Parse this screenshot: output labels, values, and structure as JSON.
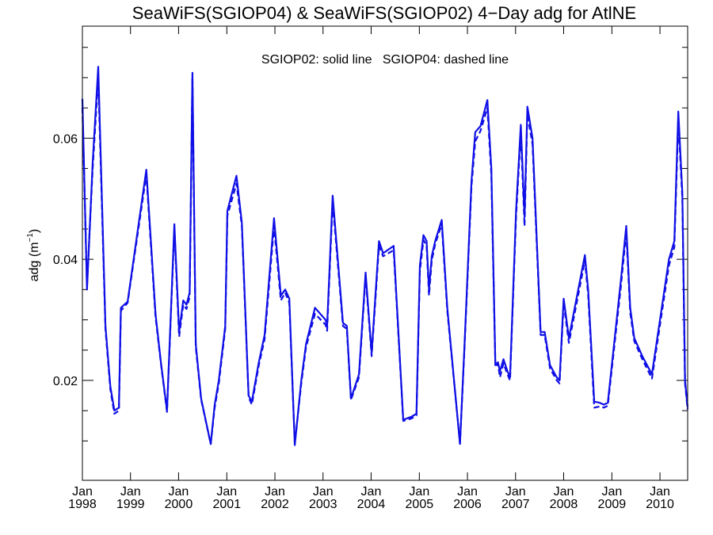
{
  "chart_data": {
    "type": "line",
    "title": "SeaWiFS(SGIOP04) & SeaWiFS(SGIOP02) 4−Day adg for AtlNE",
    "annotation": "SGIOP02: solid line   SGIOP04: dashed line",
    "ylabel_main": "adg (m",
    "ylabel_sup": "−1",
    "ylabel_close": ")",
    "ylim": [
      0.0035,
      0.0785
    ],
    "xlim": [
      "1998-01-01",
      "2010-07-30"
    ],
    "yticks": [
      0.02,
      0.04,
      0.06
    ],
    "ytick_labels": [
      "0.02",
      "0.04",
      "0.06"
    ],
    "ytick_minor": [
      0.01,
      0.015,
      0.025,
      0.03,
      0.035,
      0.045,
      0.05,
      0.055,
      0.065,
      0.07,
      0.075
    ],
    "xticks": [
      {
        "date": "1998-01-01",
        "month": "Jan",
        "year": "1998"
      },
      {
        "date": "1999-01-01",
        "month": "Jan",
        "year": "1999"
      },
      {
        "date": "2000-01-01",
        "month": "Jan",
        "year": "2000"
      },
      {
        "date": "2001-01-01",
        "month": "Jan",
        "year": "2001"
      },
      {
        "date": "2002-01-01",
        "month": "Jan",
        "year": "2002"
      },
      {
        "date": "2003-01-01",
        "month": "Jan",
        "year": "2003"
      },
      {
        "date": "2004-01-01",
        "month": "Jan",
        "year": "2004"
      },
      {
        "date": "2005-01-01",
        "month": "Jan",
        "year": "2005"
      },
      {
        "date": "2006-01-01",
        "month": "Jan",
        "year": "2006"
      },
      {
        "date": "2007-01-01",
        "month": "Jan",
        "year": "2007"
      },
      {
        "date": "2008-01-01",
        "month": "Jan",
        "year": "2008"
      },
      {
        "date": "2009-01-01",
        "month": "Jan",
        "year": "2009"
      },
      {
        "date": "2010-01-01",
        "month": "Jan",
        "year": "2010"
      }
    ],
    "color": "#1010e6",
    "grid": false,
    "series": [
      {
        "name": "SGIOP02",
        "style": "solid",
        "points": [
          [
            "1998-01-01",
            0.0665
          ],
          [
            "1998-02-05",
            0.035
          ],
          [
            "1998-03-20",
            0.056
          ],
          [
            "1998-05-01",
            0.0718
          ],
          [
            "1998-06-25",
            0.029
          ],
          [
            "1998-08-01",
            0.019
          ],
          [
            "1998-09-01",
            0.015
          ],
          [
            "1998-10-05",
            0.0155
          ],
          [
            "1998-10-20",
            0.032
          ],
          [
            "1998-12-10",
            0.033
          ],
          [
            "1999-05-01",
            0.0548
          ],
          [
            "1999-07-10",
            0.031
          ],
          [
            "1999-08-20",
            0.023
          ],
          [
            "1999-10-05",
            0.015
          ],
          [
            "1999-11-30",
            0.0458
          ],
          [
            "2000-01-05",
            0.028
          ],
          [
            "2000-02-05",
            0.0332
          ],
          [
            "2000-03-01",
            0.0325
          ],
          [
            "2000-03-25",
            0.0345
          ],
          [
            "2000-04-15",
            0.0708
          ],
          [
            "2000-05-10",
            0.026
          ],
          [
            "2000-06-20",
            0.017
          ],
          [
            "2000-09-01",
            0.0095
          ],
          [
            "2000-10-01",
            0.016
          ],
          [
            "2000-11-01",
            0.02
          ],
          [
            "2000-12-20",
            0.029
          ],
          [
            "2001-01-05",
            0.048
          ],
          [
            "2001-03-15",
            0.0538
          ],
          [
            "2001-04-25",
            0.046
          ],
          [
            "2001-06-15",
            0.0175
          ],
          [
            "2001-07-10",
            0.0165
          ],
          [
            "2001-09-01",
            0.023
          ],
          [
            "2001-10-15",
            0.0275
          ],
          [
            "2001-12-25",
            0.0468
          ],
          [
            "2002-02-15",
            0.034
          ],
          [
            "2002-03-20",
            0.035
          ],
          [
            "2002-04-20",
            0.0335
          ],
          [
            "2002-06-01",
            0.0093
          ],
          [
            "2002-07-20",
            0.02
          ],
          [
            "2002-08-25",
            0.026
          ],
          [
            "2002-11-01",
            0.032
          ],
          [
            "2003-01-20",
            0.03
          ],
          [
            "2003-02-01",
            0.029
          ],
          [
            "2003-03-15",
            0.0505
          ],
          [
            "2003-06-01",
            0.0295
          ],
          [
            "2003-07-01",
            0.029
          ],
          [
            "2003-08-01",
            0.017
          ],
          [
            "2003-10-01",
            0.021
          ],
          [
            "2003-11-20",
            0.0378
          ],
          [
            "2004-01-05",
            0.0245
          ],
          [
            "2004-03-01",
            0.043
          ],
          [
            "2004-04-01",
            0.041
          ],
          [
            "2004-06-20",
            0.0422
          ],
          [
            "2004-09-01",
            0.0135
          ],
          [
            "2004-11-01",
            0.014
          ],
          [
            "2004-12-10",
            0.0145
          ],
          [
            "2005-01-05",
            0.039
          ],
          [
            "2005-02-01",
            0.044
          ],
          [
            "2005-02-25",
            0.043
          ],
          [
            "2005-03-15",
            0.035
          ],
          [
            "2005-04-05",
            0.0405
          ],
          [
            "2005-05-01",
            0.043
          ],
          [
            "2005-06-20",
            0.0465
          ],
          [
            "2005-08-01",
            0.032
          ],
          [
            "2005-11-05",
            0.0095
          ],
          [
            "2005-12-10",
            0.026
          ],
          [
            "2006-02-01",
            0.053
          ],
          [
            "2006-03-01",
            0.061
          ],
          [
            "2006-04-10",
            0.062
          ],
          [
            "2006-06-01",
            0.0663
          ],
          [
            "2006-07-01",
            0.055
          ],
          [
            "2006-08-01",
            0.0225
          ],
          [
            "2006-08-20",
            0.023
          ],
          [
            "2006-09-05",
            0.0215
          ],
          [
            "2006-10-01",
            0.0235
          ],
          [
            "2006-11-01",
            0.0215
          ],
          [
            "2006-11-20",
            0.0205
          ],
          [
            "2007-01-05",
            0.048
          ],
          [
            "2007-02-10",
            0.0622
          ],
          [
            "2007-03-10",
            0.047
          ],
          [
            "2007-04-01",
            0.0652
          ],
          [
            "2007-05-10",
            0.06
          ],
          [
            "2007-07-10",
            0.028
          ],
          [
            "2007-08-10",
            0.028
          ],
          [
            "2007-09-20",
            0.0225
          ],
          [
            "2007-11-10",
            0.0205
          ],
          [
            "2007-12-01",
            0.02
          ],
          [
            "2008-01-01",
            0.0335
          ],
          [
            "2008-02-10",
            0.027
          ],
          [
            "2008-06-10",
            0.0407
          ],
          [
            "2008-07-05",
            0.035
          ],
          [
            "2008-08-20",
            0.0165
          ],
          [
            "2008-10-01",
            0.0163
          ],
          [
            "2008-11-01",
            0.016
          ],
          [
            "2008-12-01",
            0.0163
          ],
          [
            "2009-03-10",
            0.0365
          ],
          [
            "2009-04-20",
            0.0455
          ],
          [
            "2009-05-20",
            0.032
          ],
          [
            "2009-06-20",
            0.027
          ],
          [
            "2009-08-20",
            0.024
          ],
          [
            "2009-11-01",
            0.021
          ],
          [
            "2010-03-10",
            0.04
          ],
          [
            "2010-04-20",
            0.043
          ],
          [
            "2010-05-20",
            0.0644
          ],
          [
            "2010-06-20",
            0.051
          ],
          [
            "2010-07-10",
            0.02
          ],
          [
            "2010-07-30",
            0.0155
          ]
        ]
      },
      {
        "name": "SGIOP04",
        "style": "dashed",
        "points": [
          [
            "1998-01-01",
            0.065
          ],
          [
            "1998-02-05",
            0.0355
          ],
          [
            "1998-03-20",
            0.055
          ],
          [
            "1998-05-01",
            0.07
          ],
          [
            "1998-06-25",
            0.0285
          ],
          [
            "1998-08-01",
            0.0185
          ],
          [
            "1998-09-01",
            0.0145
          ],
          [
            "1998-10-05",
            0.015
          ],
          [
            "1998-10-20",
            0.0315
          ],
          [
            "1998-12-10",
            0.0328
          ],
          [
            "1999-05-01",
            0.054
          ],
          [
            "1999-07-10",
            0.0305
          ],
          [
            "1999-08-20",
            0.0228
          ],
          [
            "1999-10-05",
            0.0148
          ],
          [
            "1999-11-30",
            0.045
          ],
          [
            "2000-01-05",
            0.0272
          ],
          [
            "2000-02-05",
            0.0325
          ],
          [
            "2000-03-01",
            0.0318
          ],
          [
            "2000-03-25",
            0.0338
          ],
          [
            "2000-04-15",
            0.07
          ],
          [
            "2000-05-10",
            0.0255
          ],
          [
            "2000-06-20",
            0.0168
          ],
          [
            "2000-09-01",
            0.0095
          ],
          [
            "2000-10-01",
            0.0155
          ],
          [
            "2000-11-01",
            0.0195
          ],
          [
            "2000-12-20",
            0.0285
          ],
          [
            "2001-01-05",
            0.0472
          ],
          [
            "2001-03-15",
            0.0525
          ],
          [
            "2001-04-25",
            0.0455
          ],
          [
            "2001-06-15",
            0.0172
          ],
          [
            "2001-07-10",
            0.016
          ],
          [
            "2001-09-01",
            0.0225
          ],
          [
            "2001-10-15",
            0.0268
          ],
          [
            "2001-12-25",
            0.0455
          ],
          [
            "2002-02-15",
            0.0332
          ],
          [
            "2002-03-20",
            0.0345
          ],
          [
            "2002-04-20",
            0.0328
          ],
          [
            "2002-06-01",
            0.0095
          ],
          [
            "2002-07-20",
            0.0195
          ],
          [
            "2002-08-25",
            0.0255
          ],
          [
            "2002-11-01",
            0.031
          ],
          [
            "2003-01-20",
            0.0292
          ],
          [
            "2003-02-01",
            0.0282
          ],
          [
            "2003-03-15",
            0.0495
          ],
          [
            "2003-06-01",
            0.029
          ],
          [
            "2003-07-01",
            0.0285
          ],
          [
            "2003-08-01",
            0.0168
          ],
          [
            "2003-10-01",
            0.0205
          ],
          [
            "2003-11-20",
            0.0372
          ],
          [
            "2004-01-05",
            0.024
          ],
          [
            "2004-03-01",
            0.0422
          ],
          [
            "2004-04-01",
            0.0405
          ],
          [
            "2004-06-20",
            0.0415
          ],
          [
            "2004-09-01",
            0.0133
          ],
          [
            "2004-11-01",
            0.0137
          ],
          [
            "2004-12-10",
            0.0142
          ],
          [
            "2005-01-05",
            0.038
          ],
          [
            "2005-02-01",
            0.0432
          ],
          [
            "2005-02-25",
            0.0422
          ],
          [
            "2005-03-15",
            0.034
          ],
          [
            "2005-04-05",
            0.0398
          ],
          [
            "2005-05-01",
            0.0425
          ],
          [
            "2005-06-20",
            0.0458
          ],
          [
            "2005-08-01",
            0.0315
          ],
          [
            "2005-11-05",
            0.0096
          ],
          [
            "2005-12-10",
            0.0255
          ],
          [
            "2006-02-01",
            0.0522
          ],
          [
            "2006-03-01",
            0.0595
          ],
          [
            "2006-04-10",
            0.0612
          ],
          [
            "2006-06-01",
            0.065
          ],
          [
            "2006-07-01",
            0.054
          ],
          [
            "2006-08-01",
            0.0222
          ],
          [
            "2006-08-20",
            0.0228
          ],
          [
            "2006-09-05",
            0.0205
          ],
          [
            "2006-10-01",
            0.0228
          ],
          [
            "2006-11-01",
            0.021
          ],
          [
            "2006-11-20",
            0.02
          ],
          [
            "2007-01-05",
            0.047
          ],
          [
            "2007-02-10",
            0.061
          ],
          [
            "2007-03-10",
            0.0455
          ],
          [
            "2007-04-01",
            0.064
          ],
          [
            "2007-05-10",
            0.059
          ],
          [
            "2007-07-10",
            0.0275
          ],
          [
            "2007-08-10",
            0.0275
          ],
          [
            "2007-09-20",
            0.022
          ],
          [
            "2007-11-10",
            0.02
          ],
          [
            "2007-12-01",
            0.0195
          ],
          [
            "2008-01-01",
            0.0328
          ],
          [
            "2008-02-10",
            0.0262
          ],
          [
            "2008-06-10",
            0.0398
          ],
          [
            "2008-07-05",
            0.0342
          ],
          [
            "2008-08-20",
            0.0155
          ],
          [
            "2008-10-01",
            0.0157
          ],
          [
            "2008-11-01",
            0.0155
          ],
          [
            "2008-12-01",
            0.0158
          ],
          [
            "2009-03-10",
            0.0355
          ],
          [
            "2009-04-20",
            0.0445
          ],
          [
            "2009-05-20",
            0.0312
          ],
          [
            "2009-06-20",
            0.0265
          ],
          [
            "2009-08-20",
            0.0235
          ],
          [
            "2009-11-01",
            0.0203
          ],
          [
            "2010-03-10",
            0.039
          ],
          [
            "2010-04-20",
            0.042
          ],
          [
            "2010-05-20",
            0.063
          ],
          [
            "2010-06-20",
            0.05
          ],
          [
            "2010-07-10",
            0.0195
          ],
          [
            "2010-07-30",
            0.0152
          ]
        ]
      }
    ]
  }
}
